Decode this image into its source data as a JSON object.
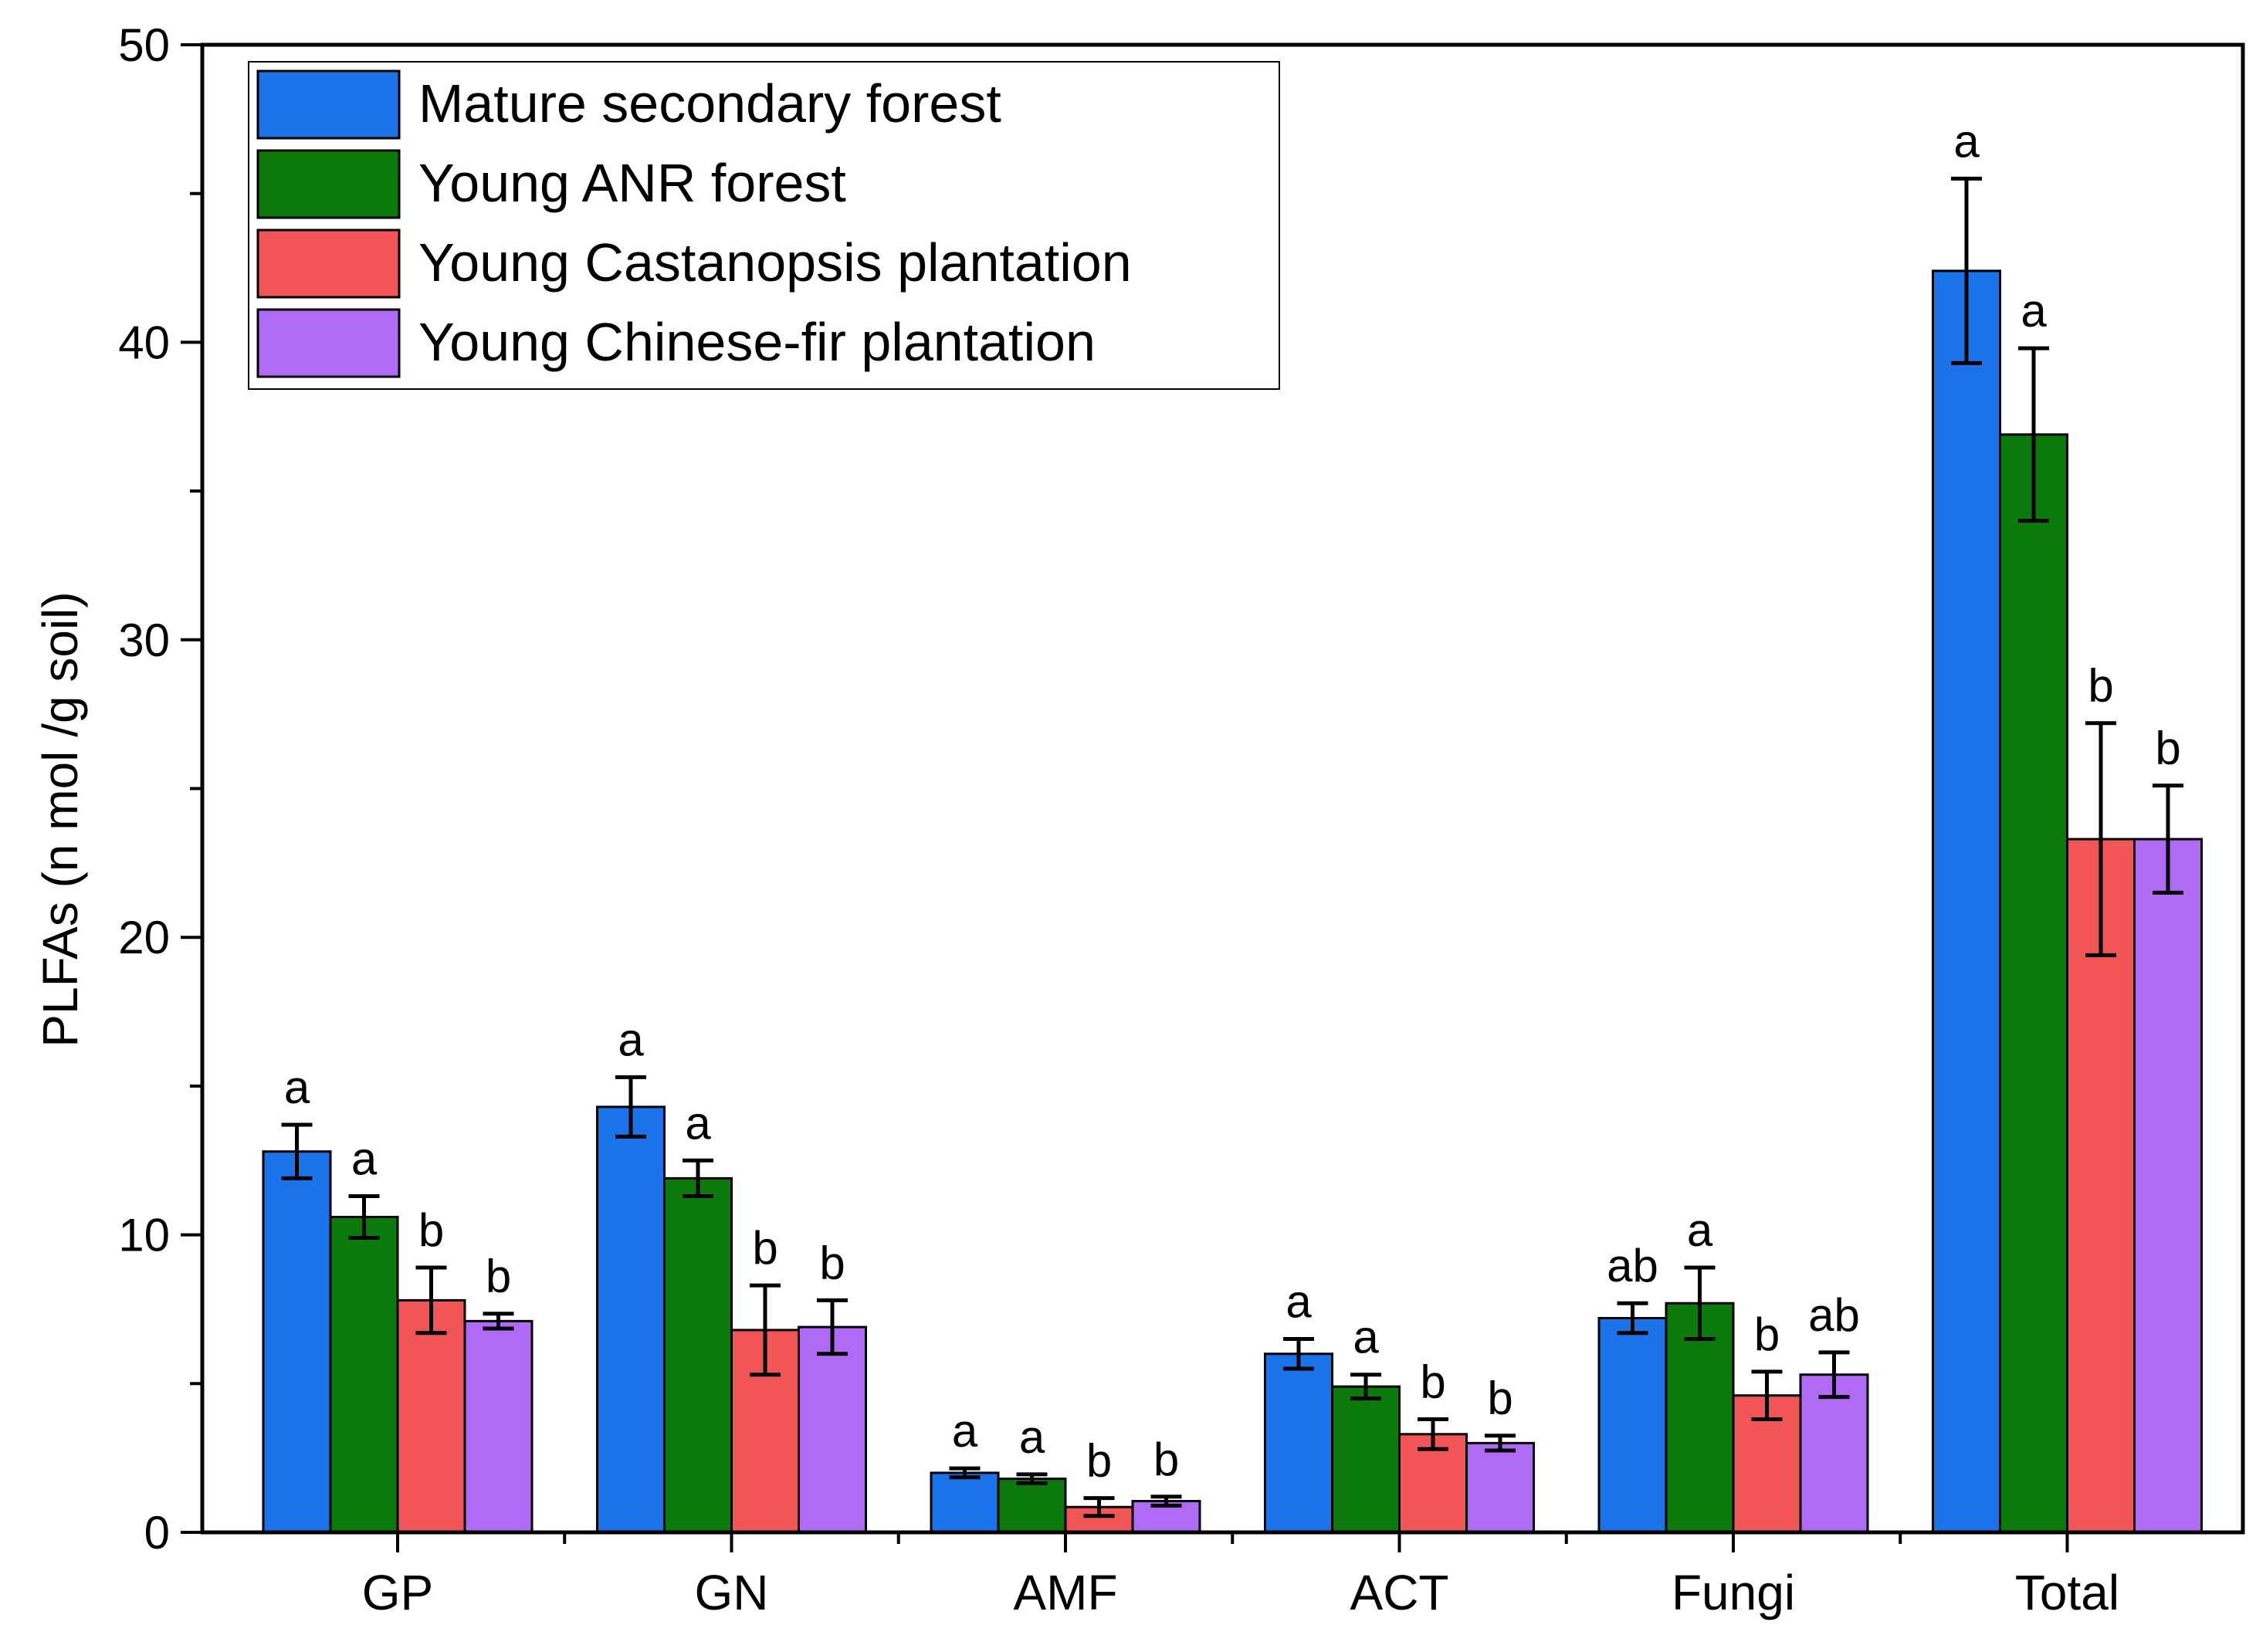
{
  "chart_data": {
    "type": "bar",
    "title": "",
    "xlabel": "",
    "ylabel": "PLFAs (n mol /g soil)",
    "ylim": [
      0,
      50
    ],
    "yticks": [
      0,
      10,
      20,
      30,
      40,
      50
    ],
    "grid": false,
    "legend_position": "top-left",
    "categories": [
      "GP",
      "GN",
      "AMF",
      "ACT",
      "Fungi",
      "Total"
    ],
    "series": [
      {
        "name": "Mature secondary forest",
        "color": "#1a73e8",
        "values": [
          12.8,
          14.3,
          2.0,
          6.0,
          7.2,
          42.4
        ],
        "errors": [
          0.9,
          1.0,
          0.15,
          0.5,
          0.5,
          3.1
        ],
        "letters": [
          "a",
          "a",
          "a",
          "a",
          "ab",
          "a"
        ]
      },
      {
        "name": "Young ANR forest",
        "color": "#0b7a0b",
        "values": [
          10.6,
          11.9,
          1.8,
          4.9,
          7.7,
          36.9
        ],
        "errors": [
          0.7,
          0.6,
          0.15,
          0.4,
          1.2,
          2.9
        ],
        "letters": [
          "a",
          "a",
          "a",
          "a",
          "a",
          "a"
        ]
      },
      {
        "name": "Young Castanopsis plantation",
        "color": "#f25555",
        "values": [
          7.8,
          6.8,
          0.85,
          3.3,
          4.6,
          23.3
        ],
        "errors": [
          1.1,
          1.5,
          0.3,
          0.5,
          0.8,
          3.9
        ],
        "letters": [
          "b",
          "b",
          "b",
          "b",
          "b",
          "b"
        ]
      },
      {
        "name": "Young Chinese-fir plantation",
        "color": "#b06af5",
        "values": [
          7.1,
          6.9,
          1.05,
          3.0,
          5.3,
          23.3
        ],
        "errors": [
          0.25,
          0.9,
          0.15,
          0.25,
          0.75,
          1.8
        ],
        "letters": [
          "b",
          "b",
          "b",
          "b",
          "ab",
          "b"
        ]
      }
    ]
  }
}
